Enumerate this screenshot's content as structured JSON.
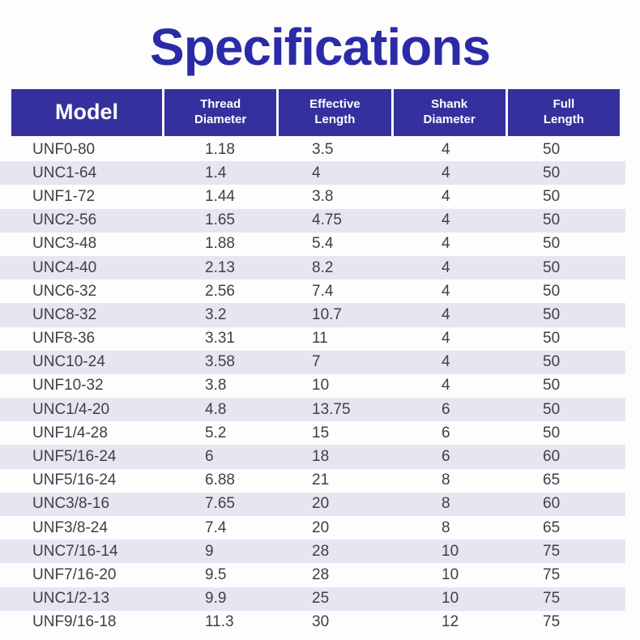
{
  "page": {
    "title": "Specifications",
    "colors": {
      "title_text": "#2b2ba8",
      "header_background": "#34319e",
      "header_text": "#ffffff",
      "stripe_row_background": "#e6e6f2",
      "row_text": "#3f3f45",
      "page_background": "#fdfdfd"
    }
  },
  "table": {
    "columns": [
      {
        "id": "model",
        "label": "Model"
      },
      {
        "id": "thread_diameter",
        "label": "Thread\nDiameter"
      },
      {
        "id": "effective_length",
        "label": "Effective\nLength"
      },
      {
        "id": "shank_diameter",
        "label": "Shank\nDiameter"
      },
      {
        "id": "full_length",
        "label": "Full\nLength"
      }
    ],
    "rows": [
      {
        "model": "UNF0-80",
        "thread_diameter": "1.18",
        "effective_length": "3.5",
        "shank_diameter": "4",
        "full_length": "50"
      },
      {
        "model": "UNC1-64",
        "thread_diameter": "1.4",
        "effective_length": "4",
        "shank_diameter": "4",
        "full_length": "50"
      },
      {
        "model": "UNF1-72",
        "thread_diameter": "1.44",
        "effective_length": "3.8",
        "shank_diameter": "4",
        "full_length": "50"
      },
      {
        "model": "UNC2-56",
        "thread_diameter": "1.65",
        "effective_length": "4.75",
        "shank_diameter": "4",
        "full_length": "50"
      },
      {
        "model": "UNC3-48",
        "thread_diameter": "1.88",
        "effective_length": "5.4",
        "shank_diameter": "4",
        "full_length": "50"
      },
      {
        "model": "UNC4-40",
        "thread_diameter": "2.13",
        "effective_length": "8.2",
        "shank_diameter": "4",
        "full_length": "50"
      },
      {
        "model": "UNC6-32",
        "thread_diameter": "2.56",
        "effective_length": "7.4",
        "shank_diameter": "4",
        "full_length": "50"
      },
      {
        "model": "UNC8-32",
        "thread_diameter": "3.2",
        "effective_length": "10.7",
        "shank_diameter": "4",
        "full_length": "50"
      },
      {
        "model": "UNF8-36",
        "thread_diameter": "3.31",
        "effective_length": "11",
        "shank_diameter": "4",
        "full_length": "50"
      },
      {
        "model": "UNC10-24",
        "thread_diameter": "3.58",
        "effective_length": "7",
        "shank_diameter": "4",
        "full_length": "50"
      },
      {
        "model": "UNF10-32",
        "thread_diameter": "3.8",
        "effective_length": "10",
        "shank_diameter": "4",
        "full_length": "50"
      },
      {
        "model": "UNC1/4-20",
        "thread_diameter": "4.8",
        "effective_length": "13.75",
        "shank_diameter": "6",
        "full_length": "50"
      },
      {
        "model": "UNF1/4-28",
        "thread_diameter": "5.2",
        "effective_length": "15",
        "shank_diameter": "6",
        "full_length": "50"
      },
      {
        "model": "UNF5/16-24",
        "thread_diameter": "6",
        "effective_length": "18",
        "shank_diameter": "6",
        "full_length": "60"
      },
      {
        "model": "UNF5/16-24",
        "thread_diameter": "6.88",
        "effective_length": "21",
        "shank_diameter": "8",
        "full_length": "65"
      },
      {
        "model": "UNC3/8-16",
        "thread_diameter": "7.65",
        "effective_length": "20",
        "shank_diameter": "8",
        "full_length": "60"
      },
      {
        "model": "UNF3/8-24",
        "thread_diameter": "7.4",
        "effective_length": "20",
        "shank_diameter": "8",
        "full_length": "65"
      },
      {
        "model": "UNC7/16-14",
        "thread_diameter": "9",
        "effective_length": "28",
        "shank_diameter": "10",
        "full_length": "75"
      },
      {
        "model": "UNF7/16-20",
        "thread_diameter": "9.5",
        "effective_length": "28",
        "shank_diameter": "10",
        "full_length": "75"
      },
      {
        "model": "UNC1/2-13",
        "thread_diameter": "9.9",
        "effective_length": "25",
        "shank_diameter": "10",
        "full_length": "75"
      },
      {
        "model": "UNF9/16-18",
        "thread_diameter": "11.3",
        "effective_length": "30",
        "shank_diameter": "12",
        "full_length": "75"
      }
    ]
  }
}
